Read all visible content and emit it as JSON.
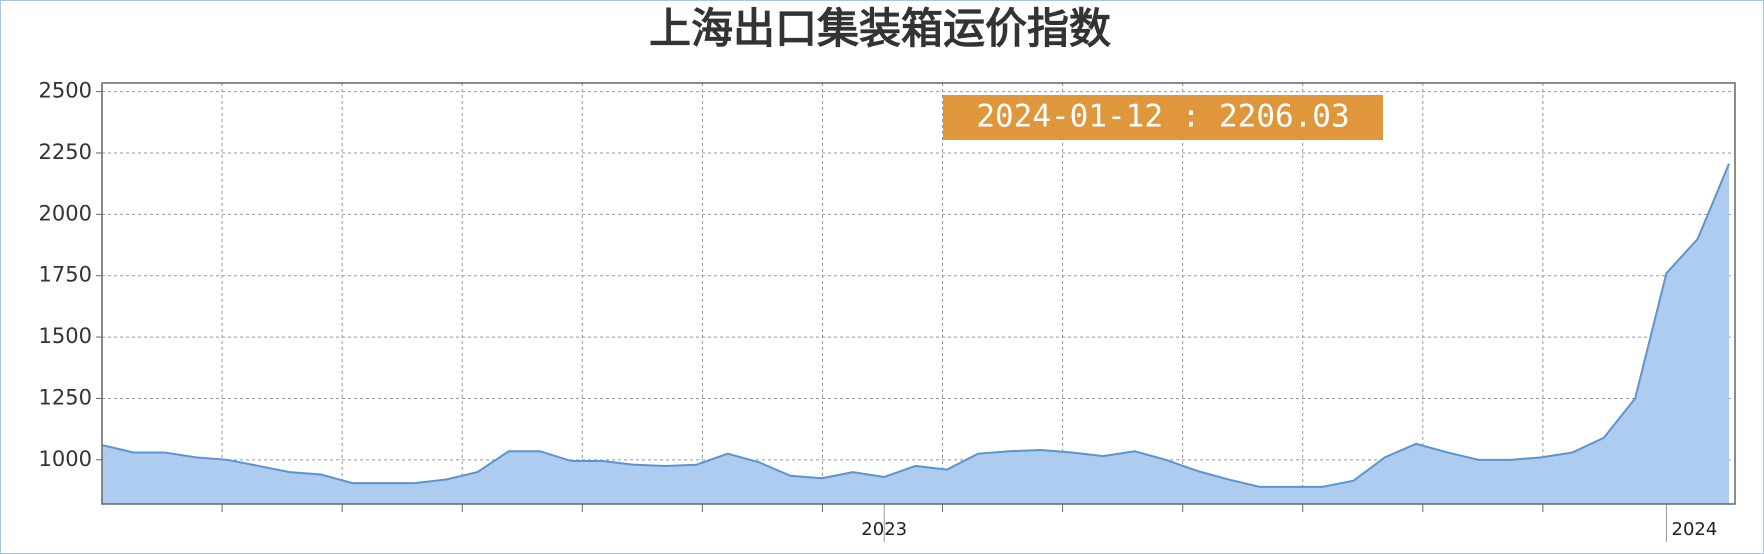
{
  "chart_data": {
    "type": "area",
    "title": "上海出口集装箱运价指数",
    "annotation": "2024-01-12 : 2206.03",
    "categories": [
      null,
      null,
      null,
      null,
      null,
      null,
      null,
      null,
      null,
      null,
      null,
      null,
      null,
      null,
      null,
      null,
      null,
      null,
      null,
      null,
      null,
      null,
      null,
      null,
      null,
      "2023",
      null,
      null,
      null,
      null,
      null,
      null,
      null,
      null,
      null,
      null,
      null,
      null,
      null,
      null,
      null,
      null,
      null,
      null,
      null,
      null,
      null,
      null,
      null,
      null,
      "2024",
      null,
      null
    ],
    "values": [
      1060,
      1030,
      1030,
      1010,
      1000,
      975,
      950,
      940,
      905,
      905,
      905,
      920,
      950,
      1035,
      1035,
      995,
      995,
      980,
      975,
      980,
      1025,
      990,
      935,
      925,
      950,
      930,
      975,
      960,
      1025,
      1035,
      1040,
      1030,
      1015,
      1035,
      1000,
      955,
      920,
      890,
      890,
      890,
      915,
      1010,
      1065,
      1030,
      1000,
      1000,
      1010,
      1030,
      1090,
      1250,
      1760,
      1900,
      2206.03
    ],
    "color": "#aecbf0",
    "line_color": "#5b95cc",
    "ylim": [
      820,
      2535
    ],
    "yticks": [
      1000,
      1250,
      1500,
      1750,
      2000,
      2250,
      2500
    ],
    "grid": true
  }
}
